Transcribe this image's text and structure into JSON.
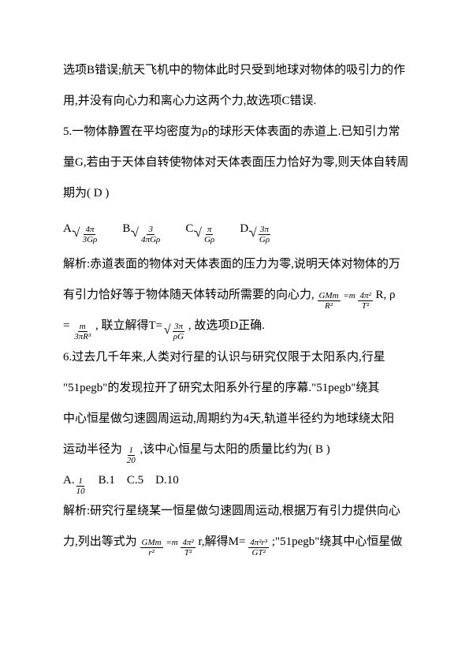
{
  "para1": "选项B错误;航天飞机中的物体此时只受到地球对物体的吸引力的作",
  "para2": "用,并没有向心力和离心力这两个力,故选项C错误.",
  "q5_1": "5.一物体静置在平均密度为ρ的球形天体表面的赤道上.已知引力常",
  "q5_2": "量G,若由于天体自转使物体对天体表面压力恰好为零,则天体自转周",
  "q5_3": "期为(  D  )",
  "opt_a": "A.",
  "opt_b": "B.",
  "opt_c": "C.",
  "opt_d": "D.",
  "a_num": "4π",
  "a_den": "3Gρ",
  "b_num": "3",
  "b_den": "4πGρ",
  "c_num": "π",
  "c_den": "Gρ",
  "d_num": "3π",
  "d_den": "Gρ",
  "sol5_1": "解析:赤道表面的物体对天体表面的压力为零,说明天体对物体的万",
  "sol5_2a": "有引力恰好等于物体随天体转动所需要的向心力,",
  "sol5_2_frac_num": "GMm",
  "sol5_2_frac_den": "R²",
  "sol5_2_eq": "=m",
  "sol5_2_frac2_num": "4π²",
  "sol5_2_frac2_den": "T²",
  "sol5_2_rr": "R, ρ",
  "sol5_3_eq": "=",
  "sol5_3_left_num": "m",
  "sol5_3_left_den": "πR³",
  "sol5_3_left_pre": "3",
  "sol5_3_mid": ", 联立解得T=",
  "sol5_3_right_num": "3π",
  "sol5_3_right_den": "ρG",
  "sol5_3_end": ", 故选项D正确.",
  "q6_1": "6.过去几千年来,人类对行星的认识与研究仅限于太阳系内,行星",
  "q6_2": "\"51pegb\"的发现拉开了研究太阳系外行星的序幕.\"51pegb\"绕其",
  "q6_3": "中心恒星做匀速圆周运动,周期约为4天,轨道半径约为地球绕太阳",
  "q6_4a": "运动半径为",
  "q6_4_frac_num": "1",
  "q6_4_frac_den": "20",
  "q6_4b": ",该中心恒星与太阳的质量比约为(  B  )",
  "opt6_a": "A.",
  "opt6_a_num": "1",
  "opt6_a_den": "10",
  "opt6_b": "B.1",
  "opt6_c": "C.5",
  "opt6_d": "D.10",
  "sol6_1": "解析:研究行星绕某一恒星做匀速圆周运动,根据万有引力提供向心",
  "sol6_2a": "力,列出等式为",
  "sol6_eq1_num": "GMm",
  "sol6_eq1_den": "r²",
  "sol6_eq1_mid": "=m",
  "sol6_eq2_num": "4π²",
  "sol6_eq2_den": "T²",
  "sol6_eq2_r": "r,解得M=",
  "sol6_eq3_num": "4π²r³",
  "sol6_eq3_den": "GT²",
  "sol6_2b": ";\"51pegb\"绕其中心恒星做"
}
